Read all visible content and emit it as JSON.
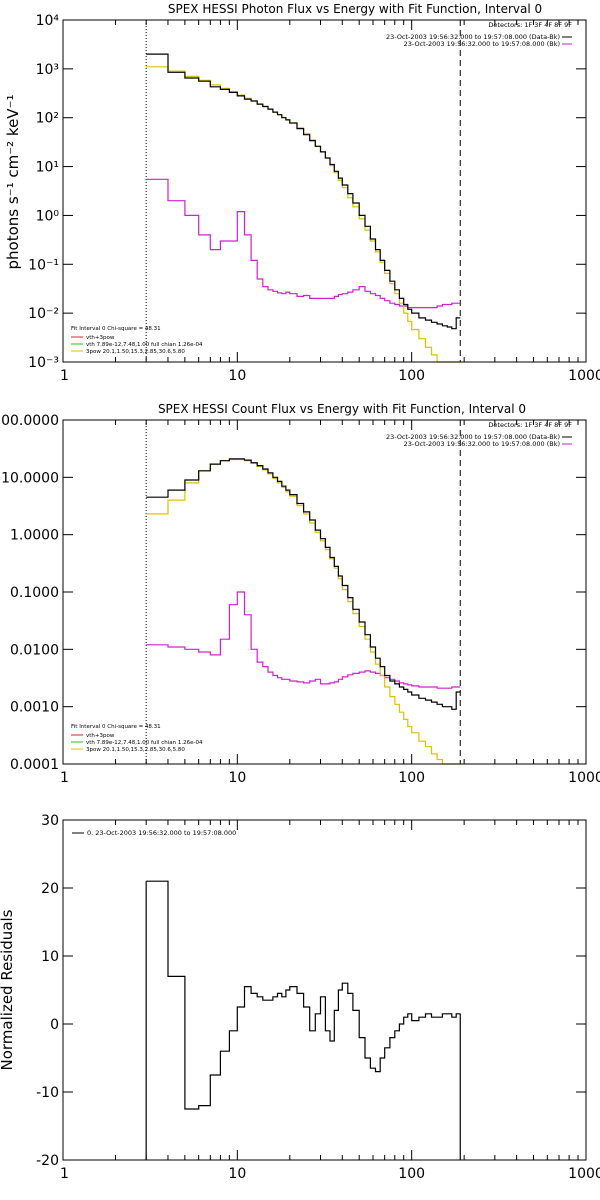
{
  "charts": [
    {
      "id": "photon",
      "title": "SPEX HESSI Photon Flux vs Energy with Fit Function, Interval 0",
      "ylabel": "photons s⁻¹ cm⁻² keV⁻¹",
      "yticks": [
        {
          "value": 0.001,
          "label": "10⁻³"
        },
        {
          "value": 0.01,
          "label": "10⁻²"
        },
        {
          "value": 0.1,
          "label": "10⁻¹"
        },
        {
          "value": 1,
          "label": "10⁰"
        },
        {
          "value": 10,
          "label": "10¹"
        },
        {
          "value": 100,
          "label": "10²"
        },
        {
          "value": 1000,
          "label": "10³"
        },
        {
          "value": 10000,
          "label": "10⁴"
        }
      ],
      "xticks": [
        {
          "value": 1,
          "label": "1"
        },
        {
          "value": 10,
          "label": "10"
        },
        {
          "value": 100,
          "label": "100"
        },
        {
          "value": 1000,
          "label": "1000"
        }
      ],
      "legend_top": [
        "Detectors: 1F 3F 4F 8F 9F",
        "23-Oct-2003 19:56:32.000 to 19:57:08.000 (Data-Bk)",
        "23-Oct-2003 19:56:32.000 to 19:57:08.000 (Bk)"
      ],
      "legend_bottom": [
        "Fit Interval 0  Chi-square = 48.31",
        "vth+3pow",
        "vth 7.89e-12,7.48,1.00  full chian 1.26e-04",
        "3pow 20.1,1.50,15.3,2.85,30.6,5.80"
      ]
    },
    {
      "id": "count",
      "title": "SPEX HESSI Count Flux vs Energy with Fit Function, Interval 0",
      "yticks": [
        {
          "value": 0.0001,
          "label": "0.0001"
        },
        {
          "value": 0.001,
          "label": "0.0010"
        },
        {
          "value": 0.01,
          "label": "0.0100"
        },
        {
          "value": 0.1,
          "label": "0.1000"
        },
        {
          "value": 1,
          "label": "1.0000"
        },
        {
          "value": 10,
          "label": "10.0000"
        },
        {
          "value": 100,
          "label": "100.0000"
        }
      ],
      "xticks": [
        {
          "value": 1,
          "label": "1"
        },
        {
          "value": 10,
          "label": "10"
        },
        {
          "value": 100,
          "label": "100"
        },
        {
          "value": 1000,
          "label": "1000"
        }
      ],
      "legend_top": [
        "Detectors: 1F 3F 4F 8F 9F",
        "23-Oct-2003 19:56:32.000 to 19:57:08.000 (Data-Bk)",
        "23-Oct-2003 19:56:32.000 to 19:57:08.000 (Bk)"
      ],
      "legend_bottom": [
        "Fit Interval 0  Chi-square = 48.31",
        "vth+3pow",
        "vth 7.89e-12,7.48,1.00  full chian 1.26e-04",
        "3pow 20.1,1.50,15.3,2.85,30.6,5.80"
      ]
    },
    {
      "id": "resid",
      "ylabel": "Normalized Residuals",
      "yticks": [
        {
          "value": -20,
          "label": "-20"
        },
        {
          "value": -10,
          "label": "-10"
        },
        {
          "value": 0,
          "label": "0"
        },
        {
          "value": 10,
          "label": "10"
        },
        {
          "value": 20,
          "label": "20"
        },
        {
          "value": 30,
          "label": "30"
        }
      ],
      "xticks": [
        {
          "value": 1,
          "label": "1"
        },
        {
          "value": 10,
          "label": "10"
        },
        {
          "value": 100,
          "label": "100"
        },
        {
          "value": 1000,
          "label": "1000"
        }
      ],
      "legend_top": [
        "0. 23-Oct-2003 19:56:32.000 to 19:57:08.000"
      ]
    }
  ],
  "chart_data": [
    {
      "type": "line",
      "title": "SPEX HESSI Photon Flux vs Energy with Fit Function, Interval 0",
      "xlabel": "",
      "ylabel": "photons s⁻¹ cm⁻² keV⁻¹",
      "xscale": "log",
      "yscale": "log",
      "xlim": [
        1,
        1000
      ],
      "ylim": [
        0.001,
        10000
      ],
      "vlines": [
        {
          "x": 3,
          "style": "dotted"
        },
        {
          "x": 190,
          "style": "dashed"
        }
      ],
      "series": [
        {
          "name": "23-Oct-2003 19:56:32.000 to 19:57:08.000 (Data-Bk)",
          "color": "#000000",
          "x": [
            3,
            4,
            5,
            6,
            7,
            8,
            9,
            10,
            11,
            12,
            13,
            14,
            15,
            16,
            17,
            18,
            19,
            20,
            22,
            24,
            26,
            28,
            30,
            32,
            34,
            36,
            38,
            40,
            43,
            46,
            50,
            54,
            58,
            62,
            66,
            70,
            75,
            80,
            85,
            90,
            95,
            100,
            110,
            120,
            130,
            140,
            150,
            160,
            170,
            180,
            190
          ],
          "y": [
            2000,
            850,
            650,
            560,
            430,
            380,
            330,
            280,
            240,
            220,
            190,
            170,
            150,
            130,
            115,
            100,
            90,
            78,
            60,
            45,
            34,
            26,
            20,
            15,
            11,
            8,
            5.8,
            4.2,
            2.8,
            1.8,
            1.0,
            0.6,
            0.33,
            0.2,
            0.12,
            0.075,
            0.045,
            0.03,
            0.02,
            0.015,
            0.012,
            0.01,
            0.008,
            0.0072,
            0.0065,
            0.006,
            0.0055,
            0.0052,
            0.0048,
            0.008,
            0.008
          ]
        },
        {
          "name": "23-Oct-2003 19:56:32.000 to 19:57:08.000 (Bk)",
          "color": "#d020d0",
          "x": [
            3,
            4,
            5,
            6,
            7,
            8,
            9,
            10,
            11,
            12,
            13,
            14,
            15,
            16,
            17,
            18,
            19,
            20,
            22,
            24,
            26,
            28,
            30,
            32,
            34,
            36,
            38,
            40,
            43,
            46,
            50,
            54,
            58,
            62,
            66,
            70,
            75,
            80,
            85,
            90,
            95,
            100,
            110,
            120,
            130,
            140,
            150,
            160,
            170,
            180,
            190
          ],
          "y": [
            5.5,
            2.0,
            1.0,
            0.4,
            0.2,
            0.3,
            0.3,
            1.2,
            0.4,
            0.12,
            0.05,
            0.035,
            0.03,
            0.028,
            0.026,
            0.025,
            0.027,
            0.025,
            0.022,
            0.023,
            0.02,
            0.02,
            0.02,
            0.02,
            0.02,
            0.022,
            0.024,
            0.025,
            0.027,
            0.03,
            0.035,
            0.028,
            0.025,
            0.023,
            0.02,
            0.018,
            0.016,
            0.015,
            0.014,
            0.014,
            0.013,
            0.013,
            0.013,
            0.013,
            0.013,
            0.014,
            0.015,
            0.015,
            0.016,
            0.016,
            0.016
          ]
        },
        {
          "name": "vth+3pow",
          "color": "#e0c000",
          "x": [
            3,
            4,
            5,
            6,
            7,
            8,
            9,
            10,
            11,
            12,
            13,
            14,
            15,
            16,
            17,
            18,
            19,
            20,
            22,
            24,
            26,
            28,
            30,
            32,
            34,
            36,
            38,
            40,
            43,
            46,
            50,
            54,
            58,
            62,
            66,
            70,
            75,
            80,
            85,
            90,
            95,
            100,
            110,
            120,
            130,
            140,
            150,
            160,
            170,
            180,
            190
          ],
          "y": [
            1100,
            900,
            700,
            580,
            470,
            400,
            340,
            290,
            250,
            220,
            190,
            170,
            150,
            130,
            115,
            102,
            90,
            78,
            62,
            47,
            35,
            26,
            20,
            15,
            10.5,
            7.5,
            5.2,
            3.7,
            2.3,
            1.5,
            0.85,
            0.5,
            0.3,
            0.18,
            0.11,
            0.065,
            0.04,
            0.025,
            0.016,
            0.01,
            0.0068,
            0.0046,
            0.003,
            0.002,
            0.0014,
            0.001,
            0.001,
            0.001,
            0.001,
            0.001,
            0.001
          ]
        }
      ]
    },
    {
      "type": "line",
      "title": "SPEX HESSI Count Flux vs Energy with Fit Function, Interval 0",
      "xlabel": "",
      "ylabel": "",
      "xscale": "log",
      "yscale": "log",
      "xlim": [
        1,
        1000
      ],
      "ylim": [
        0.0001,
        100
      ],
      "vlines": [
        {
          "x": 3,
          "style": "dotted"
        },
        {
          "x": 190,
          "style": "dashed"
        }
      ],
      "series": [
        {
          "name": "23-Oct-2003 19:56:32.000 to 19:57:08.000 (Data-Bk)",
          "color": "#000000",
          "x": [
            3,
            4,
            5,
            6,
            7,
            8,
            9,
            10,
            11,
            12,
            13,
            14,
            15,
            16,
            17,
            18,
            19,
            20,
            22,
            24,
            26,
            28,
            30,
            32,
            34,
            36,
            38,
            40,
            43,
            46,
            50,
            54,
            58,
            62,
            66,
            70,
            75,
            80,
            85,
            90,
            95,
            100,
            110,
            120,
            130,
            140,
            150,
            160,
            170,
            180,
            190
          ],
          "y": [
            4.5,
            6.0,
            9.0,
            13.0,
            17.0,
            19.5,
            21.0,
            21.0,
            20.0,
            18.0,
            16.0,
            14.0,
            12.0,
            10.0,
            8.5,
            7.0,
            6.0,
            5.0,
            3.5,
            2.5,
            1.8,
            1.2,
            0.85,
            0.6,
            0.4,
            0.28,
            0.19,
            0.13,
            0.08,
            0.05,
            0.03,
            0.018,
            0.011,
            0.007,
            0.005,
            0.0035,
            0.0028,
            0.0025,
            0.0022,
            0.002,
            0.0018,
            0.0016,
            0.0014,
            0.0013,
            0.0012,
            0.0011,
            0.001,
            0.001,
            0.0009,
            0.0018,
            0.0018
          ]
        },
        {
          "name": "23-Oct-2003 19:56:32.000 to 19:57:08.000 (Bk)",
          "color": "#d020d0",
          "x": [
            3,
            4,
            5,
            6,
            7,
            8,
            9,
            10,
            11,
            12,
            13,
            14,
            15,
            16,
            17,
            18,
            19,
            20,
            22,
            24,
            26,
            28,
            30,
            32,
            34,
            36,
            38,
            40,
            43,
            46,
            50,
            54,
            58,
            62,
            66,
            70,
            75,
            80,
            85,
            90,
            95,
            100,
            110,
            120,
            130,
            140,
            150,
            160,
            170,
            180,
            190
          ],
          "y": [
            0.012,
            0.011,
            0.01,
            0.009,
            0.008,
            0.015,
            0.06,
            0.1,
            0.04,
            0.01,
            0.006,
            0.005,
            0.004,
            0.0035,
            0.0032,
            0.003,
            0.003,
            0.0028,
            0.0027,
            0.0026,
            0.0028,
            0.003,
            0.0025,
            0.0025,
            0.0026,
            0.0027,
            0.003,
            0.0033,
            0.0036,
            0.0038,
            0.004,
            0.0042,
            0.004,
            0.0038,
            0.0035,
            0.0032,
            0.003,
            0.0028,
            0.0026,
            0.0025,
            0.0024,
            0.0023,
            0.0022,
            0.0022,
            0.0022,
            0.0021,
            0.0021,
            0.0021,
            0.0022,
            0.0022,
            0.0022
          ]
        },
        {
          "name": "vth+3pow",
          "color": "#e0c000",
          "x": [
            3,
            4,
            5,
            6,
            7,
            8,
            9,
            10,
            11,
            12,
            13,
            14,
            15,
            16,
            17,
            18,
            19,
            20,
            22,
            24,
            26,
            28,
            30,
            32,
            34,
            36,
            38,
            40,
            43,
            46,
            50,
            54,
            58,
            62,
            66,
            70,
            75,
            80,
            85,
            90,
            95,
            100,
            110,
            120,
            130,
            140,
            150,
            160,
            170,
            180,
            190
          ],
          "y": [
            2.3,
            4.0,
            8.0,
            13.0,
            17.0,
            19.5,
            20.5,
            20.5,
            19.5,
            17.5,
            15.5,
            13.5,
            11.5,
            9.5,
            8.0,
            6.7,
            5.6,
            4.7,
            3.2,
            2.3,
            1.6,
            1.1,
            0.78,
            0.55,
            0.38,
            0.26,
            0.17,
            0.11,
            0.068,
            0.042,
            0.025,
            0.015,
            0.009,
            0.0055,
            0.0035,
            0.0022,
            0.0015,
            0.0011,
            0.0008,
            0.0006,
            0.00045,
            0.00035,
            0.00025,
            0.0002,
            0.00015,
            0.00012,
            0.0001,
            0.0001,
            0.0001,
            0.0001,
            0.0001
          ]
        }
      ]
    },
    {
      "type": "line",
      "title": "",
      "xlabel": "",
      "ylabel": "Normalized Residuals",
      "xscale": "log",
      "yscale": "linear",
      "xlim": [
        1,
        1000
      ],
      "ylim": [
        -20,
        30
      ],
      "series": [
        {
          "name": "0. 23-Oct-2003 19:56:32.000 to 19:57:08.000",
          "color": "#000000",
          "x": [
            3,
            4,
            5,
            6,
            7,
            8,
            9,
            10,
            11,
            12,
            13,
            14,
            15,
            16,
            17,
            18,
            19,
            20,
            22,
            24,
            26,
            28,
            30,
            32,
            34,
            36,
            38,
            40,
            43,
            46,
            50,
            54,
            58,
            62,
            66,
            70,
            75,
            80,
            85,
            90,
            95,
            100,
            110,
            120,
            130,
            140,
            150,
            160,
            170,
            180,
            190
          ],
          "y": [
            21,
            7.0,
            -12.5,
            -12.0,
            -7.5,
            -4.0,
            -1.0,
            2.5,
            5.5,
            4.5,
            4.0,
            3.5,
            3.5,
            4.0,
            4.5,
            4.0,
            5.0,
            5.5,
            4.5,
            2.5,
            -1.0,
            1.5,
            4.0,
            -1.0,
            -2.5,
            2.0,
            5.0,
            6.0,
            4.5,
            2.0,
            -2.0,
            -5.0,
            -6.5,
            -7.0,
            -5.0,
            -3.5,
            -2.0,
            -1.0,
            0.0,
            1.0,
            1.5,
            0.5,
            1.0,
            1.5,
            1.0,
            1.0,
            1.5,
            1.5,
            1.0,
            1.5,
            1.5
          ]
        }
      ]
    }
  ]
}
